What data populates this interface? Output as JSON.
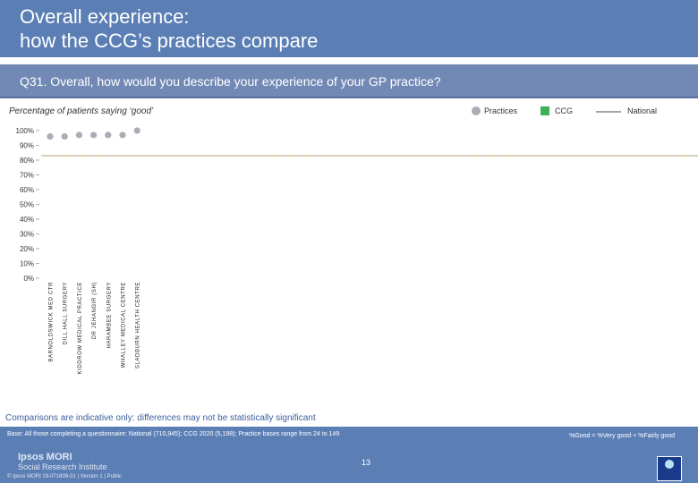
{
  "header": {
    "title_line1": "Overall experience:",
    "title_line2": "how the CCG’s practices compare"
  },
  "question": "Q31. Overall, how would you describe your experience of your GP practice?",
  "legend": {
    "practices": "Practices",
    "ccg": "CCG",
    "national": "National"
  },
  "colors": {
    "practice_marker": "#a9adb5",
    "ccg": "#3db05a",
    "national": "#a0a4ab",
    "band": "#5b7fb5"
  },
  "chart_data": {
    "type": "scatter",
    "subtitle": "Percentage of patients saying ‘good’",
    "y_ticks": [
      "100%",
      "90%",
      "80%",
      "70%",
      "60%",
      "50%",
      "40%",
      "30%",
      "20%",
      "10%",
      "0%"
    ],
    "ylim": [
      0,
      100
    ],
    "categories": [
      "BARNOLDSWICK MED CTR",
      "DILL HALL SURGERY",
      "KIDDROW MEDICAL PRACTICE",
      "DR JEHANGIR (SH)",
      "HARAMBEE SURGERY",
      "WHALLEY MEDICAL CENTRE",
      "SLADBURN HEALTH CENTRE"
    ],
    "values": [
      96,
      96,
      97,
      97,
      97,
      97,
      100
    ],
    "ccg_value": 83,
    "national_value": 83
  },
  "footer": {
    "note": "Comparisons are indicative only: differences may not be statistically significant",
    "base": "Base: All those completing a questionnaire: National (710,945); CCG 2020 (5,198); Practice bases range from 24 to 149",
    "definition": "%Good = %Very good + %Fairly good",
    "logo_line1": "Ipsos MORI",
    "logo_line2": "Social Research Institute",
    "copyright": "© Ipsos MORI     19-071809-01 | Version 1 | Public",
    "page_number": "13"
  }
}
